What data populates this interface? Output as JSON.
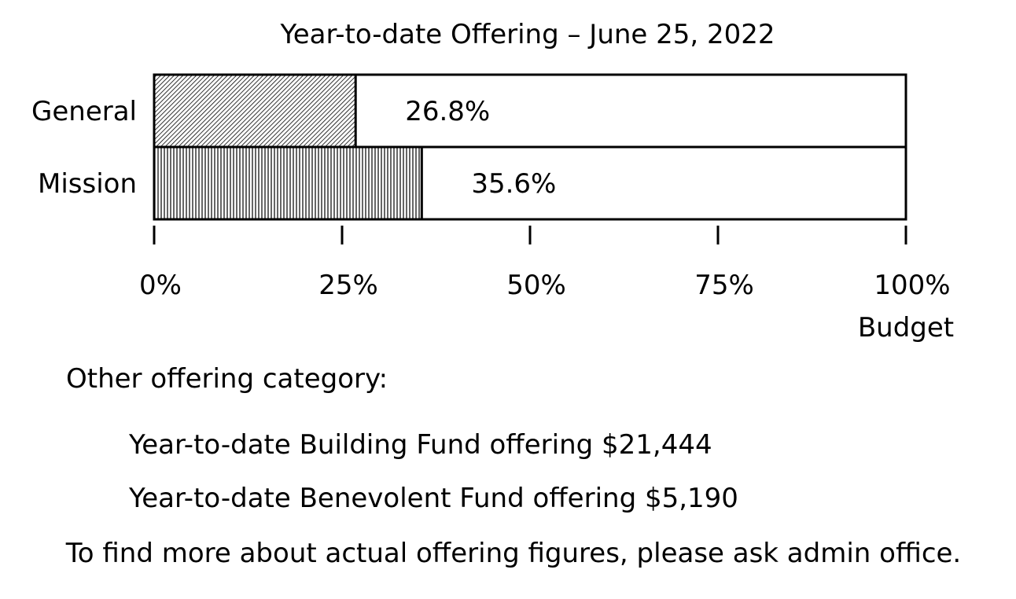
{
  "chart_data": {
    "type": "bar",
    "orientation": "horizontal",
    "title": "Year-to-date Offering – June 25, 2022",
    "categories": [
      "General",
      "Mission"
    ],
    "values": [
      26.8,
      35.6
    ],
    "value_labels": [
      "26.8%",
      "35.6%"
    ],
    "xlim": [
      0,
      100
    ],
    "xticks": [
      "0%",
      "25%",
      "50%",
      "75%",
      "100%"
    ],
    "xlabel": "Budget",
    "grid": false,
    "fill_patterns": [
      "diagonal-hatch",
      "vertical-hatch"
    ]
  },
  "notes": {
    "heading": "Other offering category:",
    "building": "Year-to-date Building Fund offering $21,444",
    "benevolent": "Year-to-date Benevolent Fund offering $5,190",
    "footnote": "To find more about actual offering figures, please ask admin office."
  }
}
